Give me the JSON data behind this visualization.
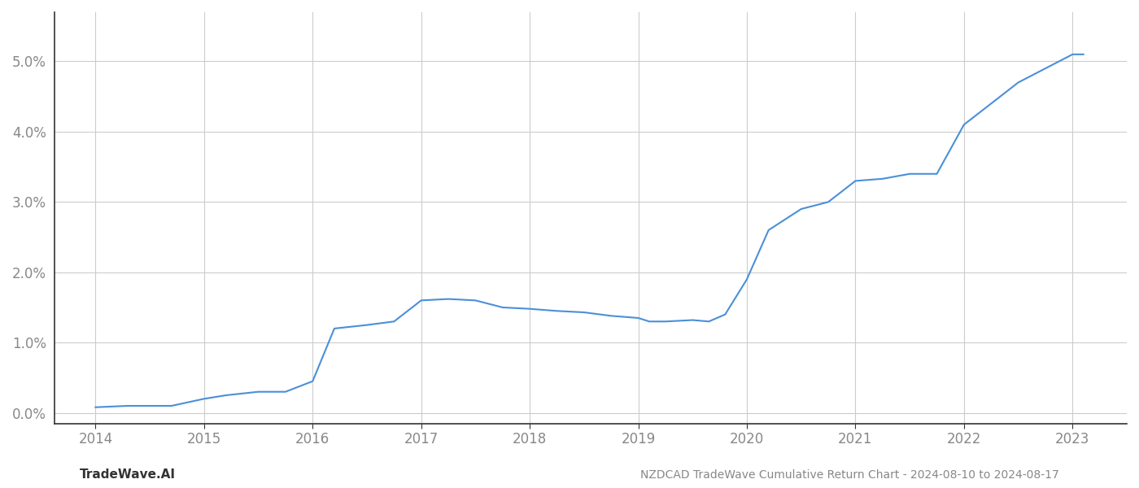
{
  "x": [
    2014.0,
    2014.3,
    2014.7,
    2015.0,
    2015.2,
    2015.5,
    2015.75,
    2016.0,
    2016.2,
    2016.5,
    2016.75,
    2017.0,
    2017.25,
    2017.5,
    2017.75,
    2018.0,
    2018.25,
    2018.5,
    2018.75,
    2019.0,
    2019.1,
    2019.25,
    2019.5,
    2019.65,
    2019.8,
    2020.0,
    2020.2,
    2020.5,
    2020.75,
    2021.0,
    2021.25,
    2021.5,
    2021.6,
    2021.75,
    2022.0,
    2022.25,
    2022.5,
    2022.75,
    2023.0,
    2023.1
  ],
  "y": [
    0.0008,
    0.001,
    0.001,
    0.002,
    0.0025,
    0.003,
    0.003,
    0.0045,
    0.012,
    0.0125,
    0.013,
    0.016,
    0.0162,
    0.016,
    0.015,
    0.0148,
    0.0145,
    0.0143,
    0.0138,
    0.0135,
    0.013,
    0.013,
    0.0132,
    0.013,
    0.014,
    0.019,
    0.026,
    0.029,
    0.03,
    0.033,
    0.0333,
    0.034,
    0.034,
    0.034,
    0.041,
    0.044,
    0.047,
    0.049,
    0.051,
    0.051
  ],
  "line_color": "#4a90d9",
  "line_width": 1.5,
  "xlim": [
    2013.62,
    2023.5
  ],
  "ylim": [
    -0.0015,
    0.057
  ],
  "xticks": [
    2014,
    2015,
    2016,
    2017,
    2018,
    2019,
    2020,
    2021,
    2022,
    2023
  ],
  "yticks": [
    0.0,
    0.01,
    0.02,
    0.03,
    0.04,
    0.05
  ],
  "ytick_labels": [
    "0.0%",
    "1.0%",
    "2.0%",
    "3.0%",
    "4.0%",
    "5.0%"
  ],
  "footer_left": "TradeWave.AI",
  "footer_right": "NZDCAD TradeWave Cumulative Return Chart - 2024-08-10 to 2024-08-17",
  "background_color": "#ffffff",
  "grid_color": "#cccccc",
  "tick_color": "#888888"
}
